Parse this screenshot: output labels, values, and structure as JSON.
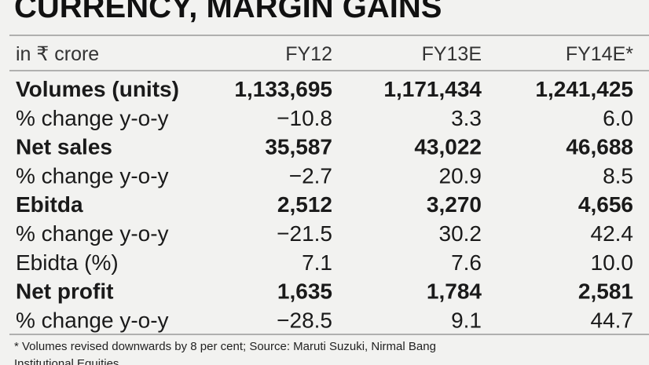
{
  "title": "CURRENCY, MARGIN GAINS",
  "table": {
    "header": [
      "in ₹ crore",
      "FY12",
      "FY13E",
      "FY14E*"
    ],
    "rows": [
      {
        "label": "Volumes (units)",
        "bold": true,
        "cells": [
          "1,133,695",
          "1,171,434",
          "1,241,425"
        ]
      },
      {
        "label": "% change y-o-y",
        "bold": false,
        "cells": [
          "−10.8",
          "3.3",
          "6.0"
        ]
      },
      {
        "label": "Net sales",
        "bold": true,
        "cells": [
          "35,587",
          "43,022",
          "46,688"
        ]
      },
      {
        "label": "% change y-o-y",
        "bold": false,
        "cells": [
          "−2.7",
          "20.9",
          "8.5"
        ]
      },
      {
        "label": "Ebitda",
        "bold": true,
        "cells": [
          "2,512",
          "3,270",
          "4,656"
        ]
      },
      {
        "label": "% change y-o-y",
        "bold": false,
        "cells": [
          "−21.5",
          "30.2",
          "42.4"
        ]
      },
      {
        "label": "Ebidta (%)",
        "bold": false,
        "cells": [
          "7.1",
          "7.6",
          "10.0"
        ]
      },
      {
        "label": "Net profit",
        "bold": true,
        "cells": [
          "1,635",
          "1,784",
          "2,581"
        ]
      },
      {
        "label": "% change y-o-y",
        "bold": false,
        "cells": [
          "−28.5",
          "9.1",
          "44.7"
        ]
      }
    ]
  },
  "footnote": [
    "* Volumes revised downwards by 8 per cent; Source: Maruti Suzuki, Nirmal Bang",
    "Institutional Equities"
  ]
}
